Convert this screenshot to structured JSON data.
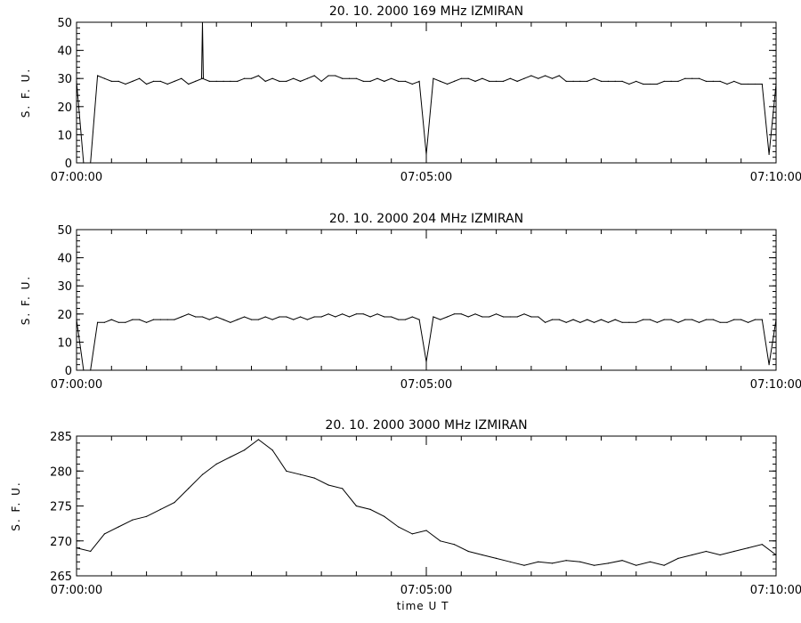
{
  "chart_data": [
    {
      "type": "line",
      "title": "20. 10. 2000   169 MHz   IZMIRAN",
      "ylabel": "S. F. U.",
      "xlabel": "",
      "ylim": [
        0,
        50
      ],
      "yticks": [
        "0",
        "10",
        "20",
        "30",
        "40",
        "50"
      ],
      "xlim": [
        "07:00:00",
        "07:10:00"
      ],
      "xticks": [
        "07:00:00",
        "07:05:00",
        "07:10:00"
      ],
      "series": [
        {
          "x": [
            "07:00:00",
            "07:00:06",
            "07:00:12",
            "07:00:18",
            "07:00:24",
            "07:00:30",
            "07:00:36",
            "07:00:42",
            "07:00:48",
            "07:00:54",
            "07:01:00",
            "07:01:06",
            "07:01:12",
            "07:01:18",
            "07:01:24",
            "07:01:30",
            "07:01:36",
            "07:01:42",
            "07:01:48",
            "07:01:54",
            "07:02:00",
            "07:02:06",
            "07:02:12",
            "07:02:18",
            "07:02:24",
            "07:02:30",
            "07:02:36",
            "07:02:42",
            "07:02:48",
            "07:02:54",
            "07:03:00",
            "07:03:06",
            "07:03:12",
            "07:03:18",
            "07:03:24",
            "07:03:30",
            "07:03:36",
            "07:03:42",
            "07:03:48",
            "07:03:54",
            "07:04:00",
            "07:04:06",
            "07:04:12",
            "07:04:18",
            "07:04:24",
            "07:04:30",
            "07:04:36",
            "07:04:42",
            "07:04:48",
            "07:04:54",
            "07:05:00",
            "07:05:06",
            "07:05:12",
            "07:05:18",
            "07:05:24",
            "07:05:30",
            "07:05:36",
            "07:05:42",
            "07:05:48",
            "07:05:54",
            "07:06:00",
            "07:06:06",
            "07:06:12",
            "07:06:18",
            "07:06:24",
            "07:06:30",
            "07:06:36",
            "07:06:42",
            "07:06:48",
            "07:06:54",
            "07:07:00",
            "07:07:06",
            "07:07:12",
            "07:07:18",
            "07:07:24",
            "07:07:30",
            "07:07:36",
            "07:07:42",
            "07:07:48",
            "07:07:54",
            "07:08:00",
            "07:08:06",
            "07:08:12",
            "07:08:18",
            "07:08:24",
            "07:08:30",
            "07:08:36",
            "07:08:42",
            "07:08:48",
            "07:08:54",
            "07:09:00",
            "07:09:06",
            "07:09:12",
            "07:09:18",
            "07:09:24",
            "07:09:30",
            "07:09:36",
            "07:09:42",
            "07:09:48",
            "07:09:54",
            "07:10:00"
          ],
          "y": [
            29,
            0,
            0,
            31,
            30,
            29,
            29,
            28,
            29,
            30,
            28,
            29,
            29,
            28,
            29,
            30,
            28,
            29,
            30,
            29,
            29,
            29,
            29,
            29,
            30,
            30,
            31,
            29,
            30,
            29,
            29,
            30,
            29,
            30,
            31,
            29,
            31,
            31,
            30,
            30,
            30,
            29,
            29,
            30,
            29,
            30,
            29,
            29,
            28,
            29,
            3,
            30,
            29,
            28,
            29,
            30,
            30,
            29,
            30,
            29,
            29,
            29,
            30,
            29,
            30,
            31,
            30,
            31,
            30,
            31,
            29,
            29,
            29,
            29,
            30,
            29,
            29,
            29,
            29,
            28,
            29,
            28,
            28,
            28,
            29,
            29,
            29,
            30,
            30,
            30,
            29,
            29,
            29,
            28,
            29,
            28,
            28,
            28,
            28,
            3,
            28
          ],
          "spikes": [
            {
              "x": "07:01:48",
              "y": 50
            }
          ]
        }
      ]
    },
    {
      "type": "line",
      "title": "20. 10. 2000   204 MHz   IZMIRAN",
      "ylabel": "S. F. U.",
      "xlabel": "",
      "ylim": [
        0,
        50
      ],
      "yticks": [
        "0",
        "10",
        "20",
        "30",
        "40",
        "50"
      ],
      "xlim": [
        "07:00:00",
        "07:10:00"
      ],
      "xticks": [
        "07:00:00",
        "07:05:00",
        "07:10:00"
      ],
      "series": [
        {
          "x": [
            "07:00:00",
            "07:00:06",
            "07:00:12",
            "07:00:18",
            "07:00:24",
            "07:00:30",
            "07:00:36",
            "07:00:42",
            "07:00:48",
            "07:00:54",
            "07:01:00",
            "07:01:06",
            "07:01:12",
            "07:01:18",
            "07:01:24",
            "07:01:30",
            "07:01:36",
            "07:01:42",
            "07:01:48",
            "07:01:54",
            "07:02:00",
            "07:02:06",
            "07:02:12",
            "07:02:18",
            "07:02:24",
            "07:02:30",
            "07:02:36",
            "07:02:42",
            "07:02:48",
            "07:02:54",
            "07:03:00",
            "07:03:06",
            "07:03:12",
            "07:03:18",
            "07:03:24",
            "07:03:30",
            "07:03:36",
            "07:03:42",
            "07:03:48",
            "07:03:54",
            "07:04:00",
            "07:04:06",
            "07:04:12",
            "07:04:18",
            "07:04:24",
            "07:04:30",
            "07:04:36",
            "07:04:42",
            "07:04:48",
            "07:04:54",
            "07:05:00",
            "07:05:06",
            "07:05:12",
            "07:05:18",
            "07:05:24",
            "07:05:30",
            "07:05:36",
            "07:05:42",
            "07:05:48",
            "07:05:54",
            "07:06:00",
            "07:06:06",
            "07:06:12",
            "07:06:18",
            "07:06:24",
            "07:06:30",
            "07:06:36",
            "07:06:42",
            "07:06:48",
            "07:06:54",
            "07:07:00",
            "07:07:06",
            "07:07:12",
            "07:07:18",
            "07:07:24",
            "07:07:30",
            "07:07:36",
            "07:07:42",
            "07:07:48",
            "07:07:54",
            "07:08:00",
            "07:08:06",
            "07:08:12",
            "07:08:18",
            "07:08:24",
            "07:08:30",
            "07:08:36",
            "07:08:42",
            "07:08:48",
            "07:08:54",
            "07:09:00",
            "07:09:06",
            "07:09:12",
            "07:09:18",
            "07:09:24",
            "07:09:30",
            "07:09:36",
            "07:09:42",
            "07:09:48",
            "07:09:54",
            "07:10:00"
          ],
          "y": [
            18,
            0,
            0,
            17,
            17,
            18,
            17,
            17,
            18,
            18,
            17,
            18,
            18,
            18,
            18,
            19,
            20,
            19,
            19,
            18,
            19,
            18,
            17,
            18,
            19,
            18,
            18,
            19,
            18,
            19,
            19,
            18,
            19,
            18,
            19,
            19,
            20,
            19,
            20,
            19,
            20,
            20,
            19,
            20,
            19,
            19,
            18,
            18,
            19,
            18,
            3,
            19,
            18,
            19,
            20,
            20,
            19,
            20,
            19,
            19,
            20,
            19,
            19,
            19,
            20,
            19,
            19,
            17,
            18,
            18,
            17,
            18,
            17,
            18,
            17,
            18,
            17,
            18,
            17,
            17,
            17,
            18,
            18,
            17,
            18,
            18,
            17,
            18,
            18,
            17,
            18,
            18,
            17,
            17,
            18,
            18,
            17,
            18,
            18,
            2,
            18
          ]
        }
      ]
    },
    {
      "type": "line",
      "title": "20. 10. 2000   3000 MHz   IZMIRAN",
      "ylabel": "S. F. U.",
      "xlabel": "time  U T",
      "ylim": [
        265,
        285
      ],
      "yticks": [
        "265",
        "270",
        "275",
        "280",
        "285"
      ],
      "xlim": [
        "07:00:00",
        "07:10:00"
      ],
      "xticks": [
        "07:00:00",
        "07:05:00",
        "07:10:00"
      ],
      "series": [
        {
          "x": [
            "07:00:00",
            "07:00:12",
            "07:00:24",
            "07:00:36",
            "07:00:48",
            "07:01:00",
            "07:01:12",
            "07:01:24",
            "07:01:36",
            "07:01:48",
            "07:02:00",
            "07:02:12",
            "07:02:24",
            "07:02:36",
            "07:02:48",
            "07:03:00",
            "07:03:12",
            "07:03:24",
            "07:03:36",
            "07:03:48",
            "07:04:00",
            "07:04:12",
            "07:04:24",
            "07:04:36",
            "07:04:48",
            "07:05:00",
            "07:05:12",
            "07:05:24",
            "07:05:36",
            "07:05:48",
            "07:06:00",
            "07:06:12",
            "07:06:24",
            "07:06:36",
            "07:06:48",
            "07:07:00",
            "07:07:12",
            "07:07:24",
            "07:07:36",
            "07:07:48",
            "07:08:00",
            "07:08:12",
            "07:08:24",
            "07:08:36",
            "07:08:48",
            "07:09:00",
            "07:09:12",
            "07:09:24",
            "07:09:36",
            "07:09:48",
            "07:10:00"
          ],
          "y": [
            269,
            268.5,
            271,
            272,
            273,
            273.5,
            274.5,
            275.5,
            277.5,
            279.5,
            281,
            282,
            283,
            284.5,
            283,
            280,
            279.5,
            279,
            278,
            277.5,
            275,
            274.5,
            273.5,
            272,
            271,
            271.5,
            270,
            269.5,
            268.5,
            268,
            267.5,
            267,
            266.5,
            267,
            266.8,
            267.2,
            267,
            266.5,
            266.8,
            267.2,
            266.5,
            267,
            266.5,
            267.5,
            268,
            268.5,
            268,
            268.5,
            269,
            269.5,
            268
          ]
        }
      ]
    }
  ]
}
